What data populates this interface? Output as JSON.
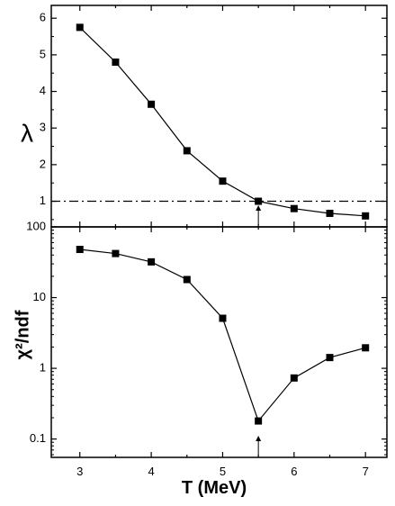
{
  "chart_data": [
    {
      "type": "line",
      "panel": "top",
      "ylabel": "λ",
      "xlim": [
        2.6,
        7.3
      ],
      "ylim": [
        0.3,
        6.35
      ],
      "yscale": "linear",
      "yticks": [
        1,
        2,
        3,
        4,
        5,
        6
      ],
      "ytick_labels": [
        "1",
        "2",
        "3",
        "4",
        "5",
        "6"
      ],
      "x": [
        3,
        3.5,
        4,
        4.5,
        5,
        5.5,
        6,
        6.5,
        7
      ],
      "series": [
        {
          "values": [
            5.75,
            4.8,
            3.65,
            2.38,
            1.55,
            1.0,
            0.8,
            0.67,
            0.6
          ]
        }
      ],
      "reference_line": {
        "y": 1,
        "style": "dash-dot"
      },
      "marker": "square",
      "annotation": {
        "type": "arrow",
        "x": 5.5,
        "direction": "up"
      }
    },
    {
      "type": "line",
      "panel": "bottom",
      "ylabel": "χ²/ndf",
      "xlabel": "T (MeV)",
      "xlim": [
        2.6,
        7.3
      ],
      "ylim": [
        0.055,
        100
      ],
      "yscale": "log",
      "yticks": [
        0.1,
        1,
        10,
        100
      ],
      "ytick_labels": [
        "0.1",
        "1",
        "10",
        "100"
      ],
      "xticks": [
        3,
        4,
        5,
        6,
        7
      ],
      "xtick_labels": [
        "3",
        "4",
        "5",
        "6",
        "7"
      ],
      "x": [
        3,
        3.5,
        4,
        4.5,
        5,
        5.5,
        6,
        6.5,
        7
      ],
      "series": [
        {
          "values": [
            48,
            42,
            32,
            18,
            5.1,
            0.18,
            0.73,
            1.42,
            1.95
          ]
        }
      ],
      "marker": "square",
      "annotation": {
        "type": "arrow",
        "x": 5.5,
        "direction": "up"
      }
    }
  ]
}
